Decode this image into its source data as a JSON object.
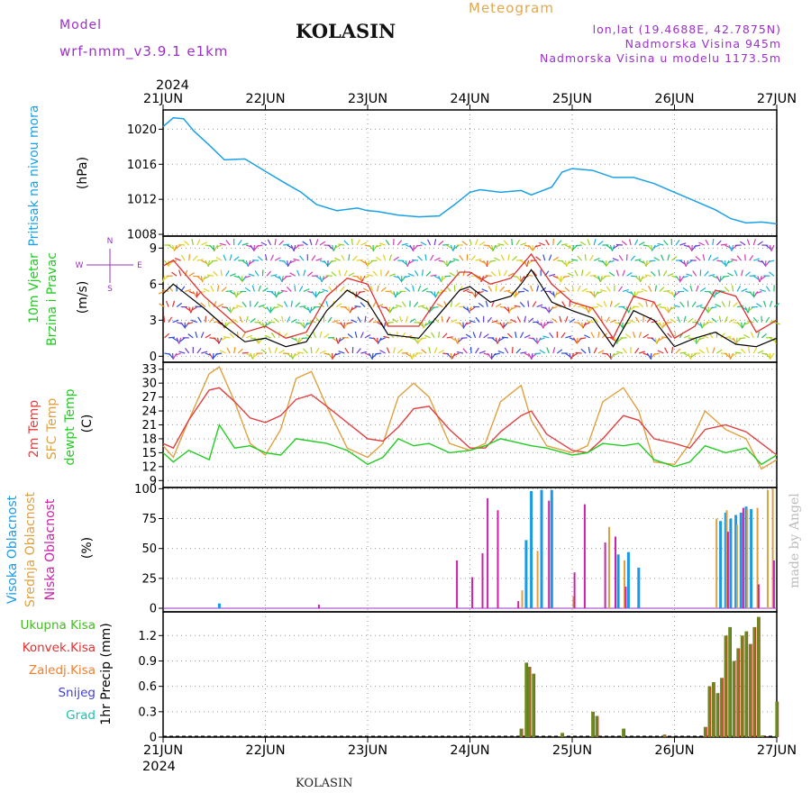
{
  "header": {
    "model_label": "Model",
    "model_name": "wrf-nmm_v3.9.1  e1km",
    "station": "KOLASIN",
    "meteogram": "Meteogram",
    "lonlat": "lon,lat (19.4688E, 42.7875N)",
    "elevation": "Nadmorska Visina 945m",
    "model_elevation": "Nadmorska Visina u modelu 1173.5m",
    "footer_station": "KOLASIN",
    "watermark": "made by Angel"
  },
  "colors": {
    "pressure": "#1aa0e6",
    "wind_speed": "#000000",
    "wind_gust": "#e03030",
    "temp2m": "#e04040",
    "sfc_temp": "#e0a040",
    "dewpt": "#22cc22",
    "cloud_high": "#1a9ae6",
    "cloud_mid": "#e0a040",
    "cloud_low": "#cc22aa",
    "precip_total": "#44bb22",
    "precip_conv": "#e03030",
    "purple_text": "#9a30c8",
    "orange_text": "#e0a850",
    "cyan_label": "#1aa0e6",
    "green_label": "#22cc22"
  },
  "chart_data": [
    {
      "type": "line",
      "panel": "pressure",
      "ylabel_left": "Pritisak na nivou mora",
      "unit": "(hPa)",
      "ylim": [
        1008,
        1022
      ],
      "yticks": [
        1008,
        1012,
        1016,
        1020
      ],
      "x_year_top": "2024",
      "x_year_bottom": "2024",
      "xticks": [
        "21JUN",
        "22JUN",
        "23JUN",
        "24JUN",
        "25JUN",
        "26JUN",
        "27JUN"
      ],
      "x_days": [
        0,
        0.1,
        0.2,
        0.3,
        0.45,
        0.6,
        0.8,
        1.0,
        1.2,
        1.35,
        1.5,
        1.7,
        1.9,
        2.0,
        2.1,
        2.3,
        2.5,
        2.7,
        2.85,
        3.0,
        3.1,
        3.3,
        3.5,
        3.6,
        3.8,
        3.9,
        4.0,
        4.2,
        4.4,
        4.6,
        4.8,
        5.0,
        5.2,
        5.4,
        5.55,
        5.7,
        5.85,
        6.0
      ],
      "values": [
        1020.3,
        1021.3,
        1021.2,
        1019.8,
        1018.2,
        1016.5,
        1016.6,
        1015.2,
        1013.8,
        1012.8,
        1011.4,
        1010.7,
        1011.0,
        1010.7,
        1010.6,
        1010.2,
        1010.0,
        1010.1,
        1011.4,
        1012.8,
        1013.1,
        1012.8,
        1013.0,
        1012.5,
        1013.4,
        1015.1,
        1015.5,
        1015.3,
        1014.5,
        1014.5,
        1013.8,
        1012.8,
        1011.8,
        1010.8,
        1009.8,
        1009.3,
        1009.4,
        1009.2
      ]
    },
    {
      "type": "line",
      "panel": "wind",
      "ylabel_left": "10m Vjetar",
      "ylabel_left2": "Brzina i Pravac",
      "unit": "(m/s)",
      "compass_legend": [
        "N",
        "W",
        "E",
        "S"
      ],
      "ylim": [
        0,
        10
      ],
      "yticks": [
        0,
        3,
        6,
        9
      ],
      "x_days": [
        0,
        0.1,
        0.25,
        0.4,
        0.6,
        0.8,
        1.0,
        1.2,
        1.4,
        1.6,
        1.8,
        2.0,
        2.2,
        2.5,
        2.7,
        2.9,
        3.0,
        3.2,
        3.4,
        3.5,
        3.6,
        3.8,
        4.0,
        4.2,
        4.4,
        4.6,
        4.8,
        5.0,
        5.2,
        5.4,
        5.6,
        5.8,
        6.0
      ],
      "series": [
        {
          "name": "speed",
          "values": [
            5.2,
            6.0,
            5.0,
            4.0,
            2.5,
            1.2,
            1.5,
            0.8,
            1.2,
            3.8,
            5.5,
            4.5,
            1.8,
            1.5,
            3.5,
            5.5,
            5.8,
            4.5,
            5.0,
            6.0,
            7.2,
            4.5,
            3.8,
            3.2,
            0.8,
            3.8,
            3.0,
            0.8,
            1.5,
            2.0,
            1.0,
            0.8,
            1.5
          ]
        },
        {
          "name": "gust",
          "values": [
            7.5,
            8.0,
            6.5,
            5.0,
            3.5,
            2.0,
            2.5,
            1.5,
            2.0,
            5.0,
            6.5,
            6.0,
            2.5,
            2.5,
            5.0,
            7.0,
            7.0,
            6.0,
            6.5,
            7.5,
            8.5,
            6.0,
            4.5,
            4.0,
            1.5,
            5.0,
            4.5,
            1.5,
            2.5,
            5.5,
            5.0,
            2.0,
            3.0
          ]
        }
      ]
    },
    {
      "type": "line",
      "panel": "temperature",
      "ylabel_left": [
        "2m Temp",
        "SFC Temp",
        "dewpt Temp"
      ],
      "unit": "(C)",
      "ylim": [
        8,
        34
      ],
      "yticks": [
        9,
        12,
        15,
        18,
        21,
        24,
        27,
        30,
        33
      ],
      "x_days": [
        0,
        0.1,
        0.25,
        0.45,
        0.55,
        0.7,
        0.85,
        1.0,
        1.15,
        1.3,
        1.45,
        1.6,
        1.8,
        2.0,
        2.15,
        2.3,
        2.45,
        2.6,
        2.8,
        3.0,
        3.15,
        3.3,
        3.5,
        3.6,
        3.75,
        4.0,
        4.15,
        4.3,
        4.5,
        4.65,
        4.8,
        5.0,
        5.15,
        5.3,
        5.5,
        5.7,
        5.85,
        6.0
      ],
      "series": [
        {
          "name": "2m Temp",
          "values": [
            17.0,
            16.0,
            22.0,
            28.5,
            29.0,
            26.0,
            22.5,
            21.5,
            23.0,
            26.5,
            27.5,
            25.0,
            21.5,
            18.0,
            17.5,
            20.5,
            24.5,
            25.0,
            20.0,
            16.0,
            16.0,
            19.5,
            23.0,
            24.0,
            19.0,
            15.5,
            15.0,
            18.0,
            23.0,
            22.0,
            18.0,
            17.0,
            16.0,
            20.0,
            21.0,
            19.5,
            17.0,
            14.5
          ]
        },
        {
          "name": "SFC Temp",
          "values": [
            16.5,
            14.0,
            22.0,
            32.0,
            33.5,
            26.0,
            17.0,
            14.5,
            20.0,
            31.0,
            32.5,
            25.0,
            16.0,
            14.0,
            17.0,
            27.0,
            30.0,
            27.0,
            17.0,
            15.5,
            17.0,
            26.0,
            29.5,
            22.0,
            16.5,
            15.0,
            16.5,
            26.0,
            29.0,
            24.0,
            13.0,
            12.5,
            17.0,
            24.0,
            20.0,
            18.0,
            11.5,
            13.5
          ]
        },
        {
          "name": "dewpt Temp",
          "values": [
            15.0,
            13.0,
            15.5,
            13.5,
            21.0,
            16.0,
            16.5,
            15.0,
            14.5,
            18.0,
            17.5,
            17.0,
            15.5,
            12.5,
            14.0,
            18.0,
            16.5,
            17.0,
            15.0,
            15.5,
            16.5,
            18.0,
            17.0,
            16.5,
            16.0,
            14.5,
            15.0,
            17.0,
            16.5,
            17.0,
            13.5,
            12.0,
            13.0,
            16.5,
            15.0,
            16.0,
            12.5,
            14.5
          ]
        }
      ]
    },
    {
      "type": "bar",
      "panel": "clouds",
      "ylabel_left": [
        "Visoka Oblacnost",
        "Srednja Oblacnost",
        "Niska Oblacnost"
      ],
      "unit": "(%)",
      "ylim": [
        0,
        100
      ],
      "yticks": [
        0,
        25,
        50,
        75,
        100
      ],
      "series": [
        {
          "name": "Visoka Oblacnost",
          "x": [
            0.55,
            3.55,
            3.6,
            3.7,
            3.8,
            4.45,
            4.55,
            4.65,
            5.45,
            5.5,
            5.55,
            5.6,
            5.65,
            5.7,
            5.75
          ],
          "values": [
            4,
            57,
            98,
            99,
            99,
            45,
            47,
            34,
            73,
            80,
            75,
            78,
            80,
            85,
            83
          ]
        },
        {
          "name": "Srednja Oblacnost",
          "x": [
            3.5,
            3.65,
            4.0,
            4.35,
            4.5,
            5.4,
            5.5,
            5.6,
            5.7,
            5.8,
            5.9,
            5.95
          ],
          "values": [
            15,
            48,
            10,
            68,
            40,
            75,
            82,
            70,
            83,
            84,
            99,
            100
          ]
        },
        {
          "name": "Niska Oblacnost",
          "x": [
            1.5,
            2.85,
            3.0,
            3.1,
            3.15,
            3.25,
            3.45,
            3.75,
            4.0,
            4.1,
            4.3,
            4.4,
            4.5,
            5.5,
            5.65,
            5.8,
            5.95
          ],
          "values": [
            3,
            40,
            26,
            46,
            92,
            82,
            6,
            90,
            30,
            87,
            55,
            60,
            18,
            64,
            84,
            20,
            40
          ]
        }
      ]
    },
    {
      "type": "bar",
      "panel": "precip",
      "ylabel_left": [
        "Ukupna  Kisa",
        "Konvek.Kisa",
        "Zaledj.Kisa",
        "Snijeg",
        "Grad"
      ],
      "ylabel_right": "1hr Precip (mm)",
      "ylim": [
        0,
        1.5
      ],
      "yticks": [
        0,
        0.3,
        0.6,
        0.9,
        1.2
      ],
      "x_days": [
        3.5,
        3.55,
        3.58,
        3.62,
        3.9,
        4.2,
        4.24,
        4.5,
        4.9,
        5.3,
        5.34,
        5.38,
        5.42,
        5.46,
        5.5,
        5.54,
        5.58,
        5.62,
        5.66,
        5.7,
        5.74,
        5.78,
        5.82,
        5.86,
        6.0
      ],
      "values": [
        0.1,
        0.88,
        0.83,
        0.75,
        0.05,
        0.3,
        0.25,
        0.1,
        0.03,
        0.12,
        0.6,
        0.65,
        0.52,
        0.7,
        1.2,
        1.3,
        0.9,
        1.05,
        1.2,
        1.25,
        1.1,
        1.3,
        1.42,
        0.02,
        0.42
      ]
    }
  ]
}
